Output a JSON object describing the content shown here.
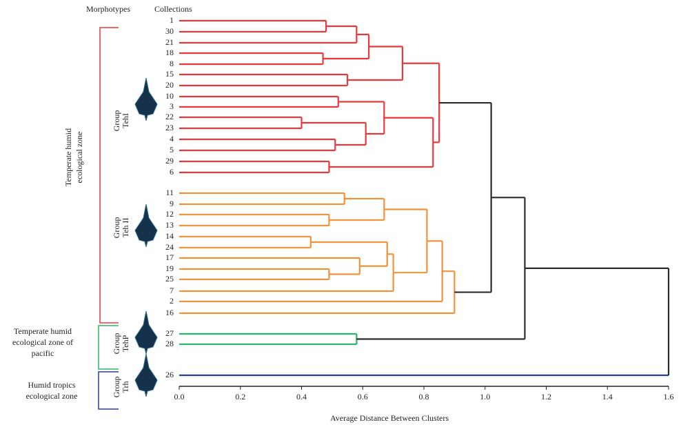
{
  "chart_data": {
    "type": "dendrogram",
    "column_headers": [
      "Morphotypes",
      "Collections"
    ],
    "x_label": "Average Distance Between Clusters",
    "xlim": [
      0,
      1.6
    ],
    "xticks": [
      {
        "value": 0,
        "label": "0.0"
      },
      0.2,
      0.4,
      0.6,
      0.8,
      {
        "value": 1,
        "label": "1.0"
      },
      1.2,
      1.4,
      1.6
    ],
    "zones": [
      {
        "lines": [
          "Temperate humid",
          "ecological zone"
        ],
        "color": "#e8383d"
      },
      {
        "lines": [
          "Temperate humid",
          "ecological zone of",
          "pacific"
        ],
        "color": "#2bb56a"
      },
      {
        "lines": [
          "Humid tropics",
          "ecological zone"
        ],
        "color": "#2e3c8f"
      }
    ],
    "groups": [
      {
        "lines": [
          "Group",
          "TehI"
        ]
      },
      {
        "lines": [
          "Group",
          "Teh II"
        ]
      },
      {
        "lines": [
          "Group",
          "TehP"
        ]
      },
      {
        "lines": [
          "Group",
          "Trh"
        ]
      }
    ],
    "tree": {
      "height": 1.6,
      "color": "#2b2b2b",
      "children": [
        {
          "height": 1.13,
          "children": [
            {
              "height": 1.02,
              "children": [
                {
                  "height": 0.85,
                  "color": "#e8383d",
                  "children": [
                    {
                      "height": 0.73,
                      "children": [
                        {
                          "height": 0.62,
                          "children": [
                            {
                              "height": 0.58,
                              "children": [
                                {
                                  "height": 0.48,
                                  "children": [
                                    "1",
                                    "30"
                                  ]
                                },
                                "21"
                              ]
                            },
                            {
                              "height": 0.47,
                              "children": [
                                "18",
                                "8"
                              ]
                            }
                          ]
                        },
                        {
                          "height": 0.55,
                          "children": [
                            "15",
                            "20"
                          ]
                        }
                      ]
                    },
                    {
                      "height": 0.83,
                      "children": [
                        {
                          "height": 0.67,
                          "children": [
                            {
                              "height": 0.52,
                              "children": [
                                "10",
                                "3"
                              ]
                            },
                            {
                              "height": 0.61,
                              "children": [
                                {
                                  "height": 0.4,
                                  "children": [
                                    "22",
                                    "23"
                                  ]
                                },
                                {
                                  "height": 0.51,
                                  "children": [
                                    "4",
                                    "5"
                                  ]
                                }
                              ]
                            }
                          ]
                        },
                        {
                          "height": 0.49,
                          "children": [
                            "29",
                            "6"
                          ]
                        }
                      ]
                    }
                  ]
                },
                {
                  "height": 0.9,
                  "color": "#f0923a",
                  "children": [
                    {
                      "height": 0.86,
                      "children": [
                        {
                          "height": 0.81,
                          "children": [
                            {
                              "height": 0.67,
                              "children": [
                                {
                                  "height": 0.54,
                                  "children": [
                                    "11",
                                    "9"
                                  ]
                                },
                                {
                                  "height": 0.49,
                                  "children": [
                                    "12",
                                    "13"
                                  ]
                                }
                              ]
                            },
                            {
                              "height": 0.7,
                              "children": [
                                {
                                  "height": 0.68,
                                  "children": [
                                    {
                                      "height": 0.43,
                                      "children": [
                                        "14",
                                        "24"
                                      ]
                                    },
                                    {
                                      "height": 0.59,
                                      "children": [
                                        "17",
                                        {
                                          "height": 0.49,
                                          "children": [
                                            "19",
                                            "25"
                                          ]
                                        }
                                      ]
                                    }
                                  ]
                                },
                                "7"
                              ]
                            }
                          ]
                        },
                        "2"
                      ]
                    },
                    "16"
                  ]
                }
              ]
            },
            {
              "height": 0.58,
              "color": "#2bb56a",
              "children": [
                "27",
                "28"
              ]
            }
          ]
        },
        {
          "label": "26",
          "color": "#2e3c8f"
        }
      ]
    }
  }
}
